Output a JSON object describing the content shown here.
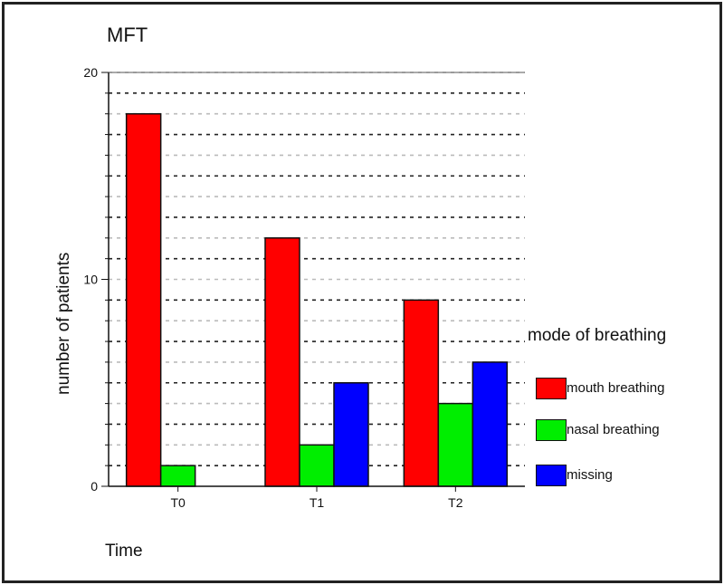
{
  "chart_data": {
    "type": "bar",
    "title": "MFT",
    "xlabel": "Time",
    "ylabel": "number of patients",
    "categories": [
      "T0",
      "T1",
      "T2"
    ],
    "ylim": [
      0,
      20
    ],
    "yticks": [
      0,
      10,
      20
    ],
    "grid": true,
    "legend_title": "mode of breathing",
    "legend_position": "right",
    "series": [
      {
        "name": "mouth breathing",
        "color": "#ff0000",
        "values": [
          18,
          12,
          9
        ]
      },
      {
        "name": "nasal breathing",
        "color": "#00ee00",
        "values": [
          1,
          2,
          4
        ]
      },
      {
        "name": "missing",
        "color": "#0000ff",
        "values": [
          0,
          5,
          6
        ]
      }
    ]
  }
}
